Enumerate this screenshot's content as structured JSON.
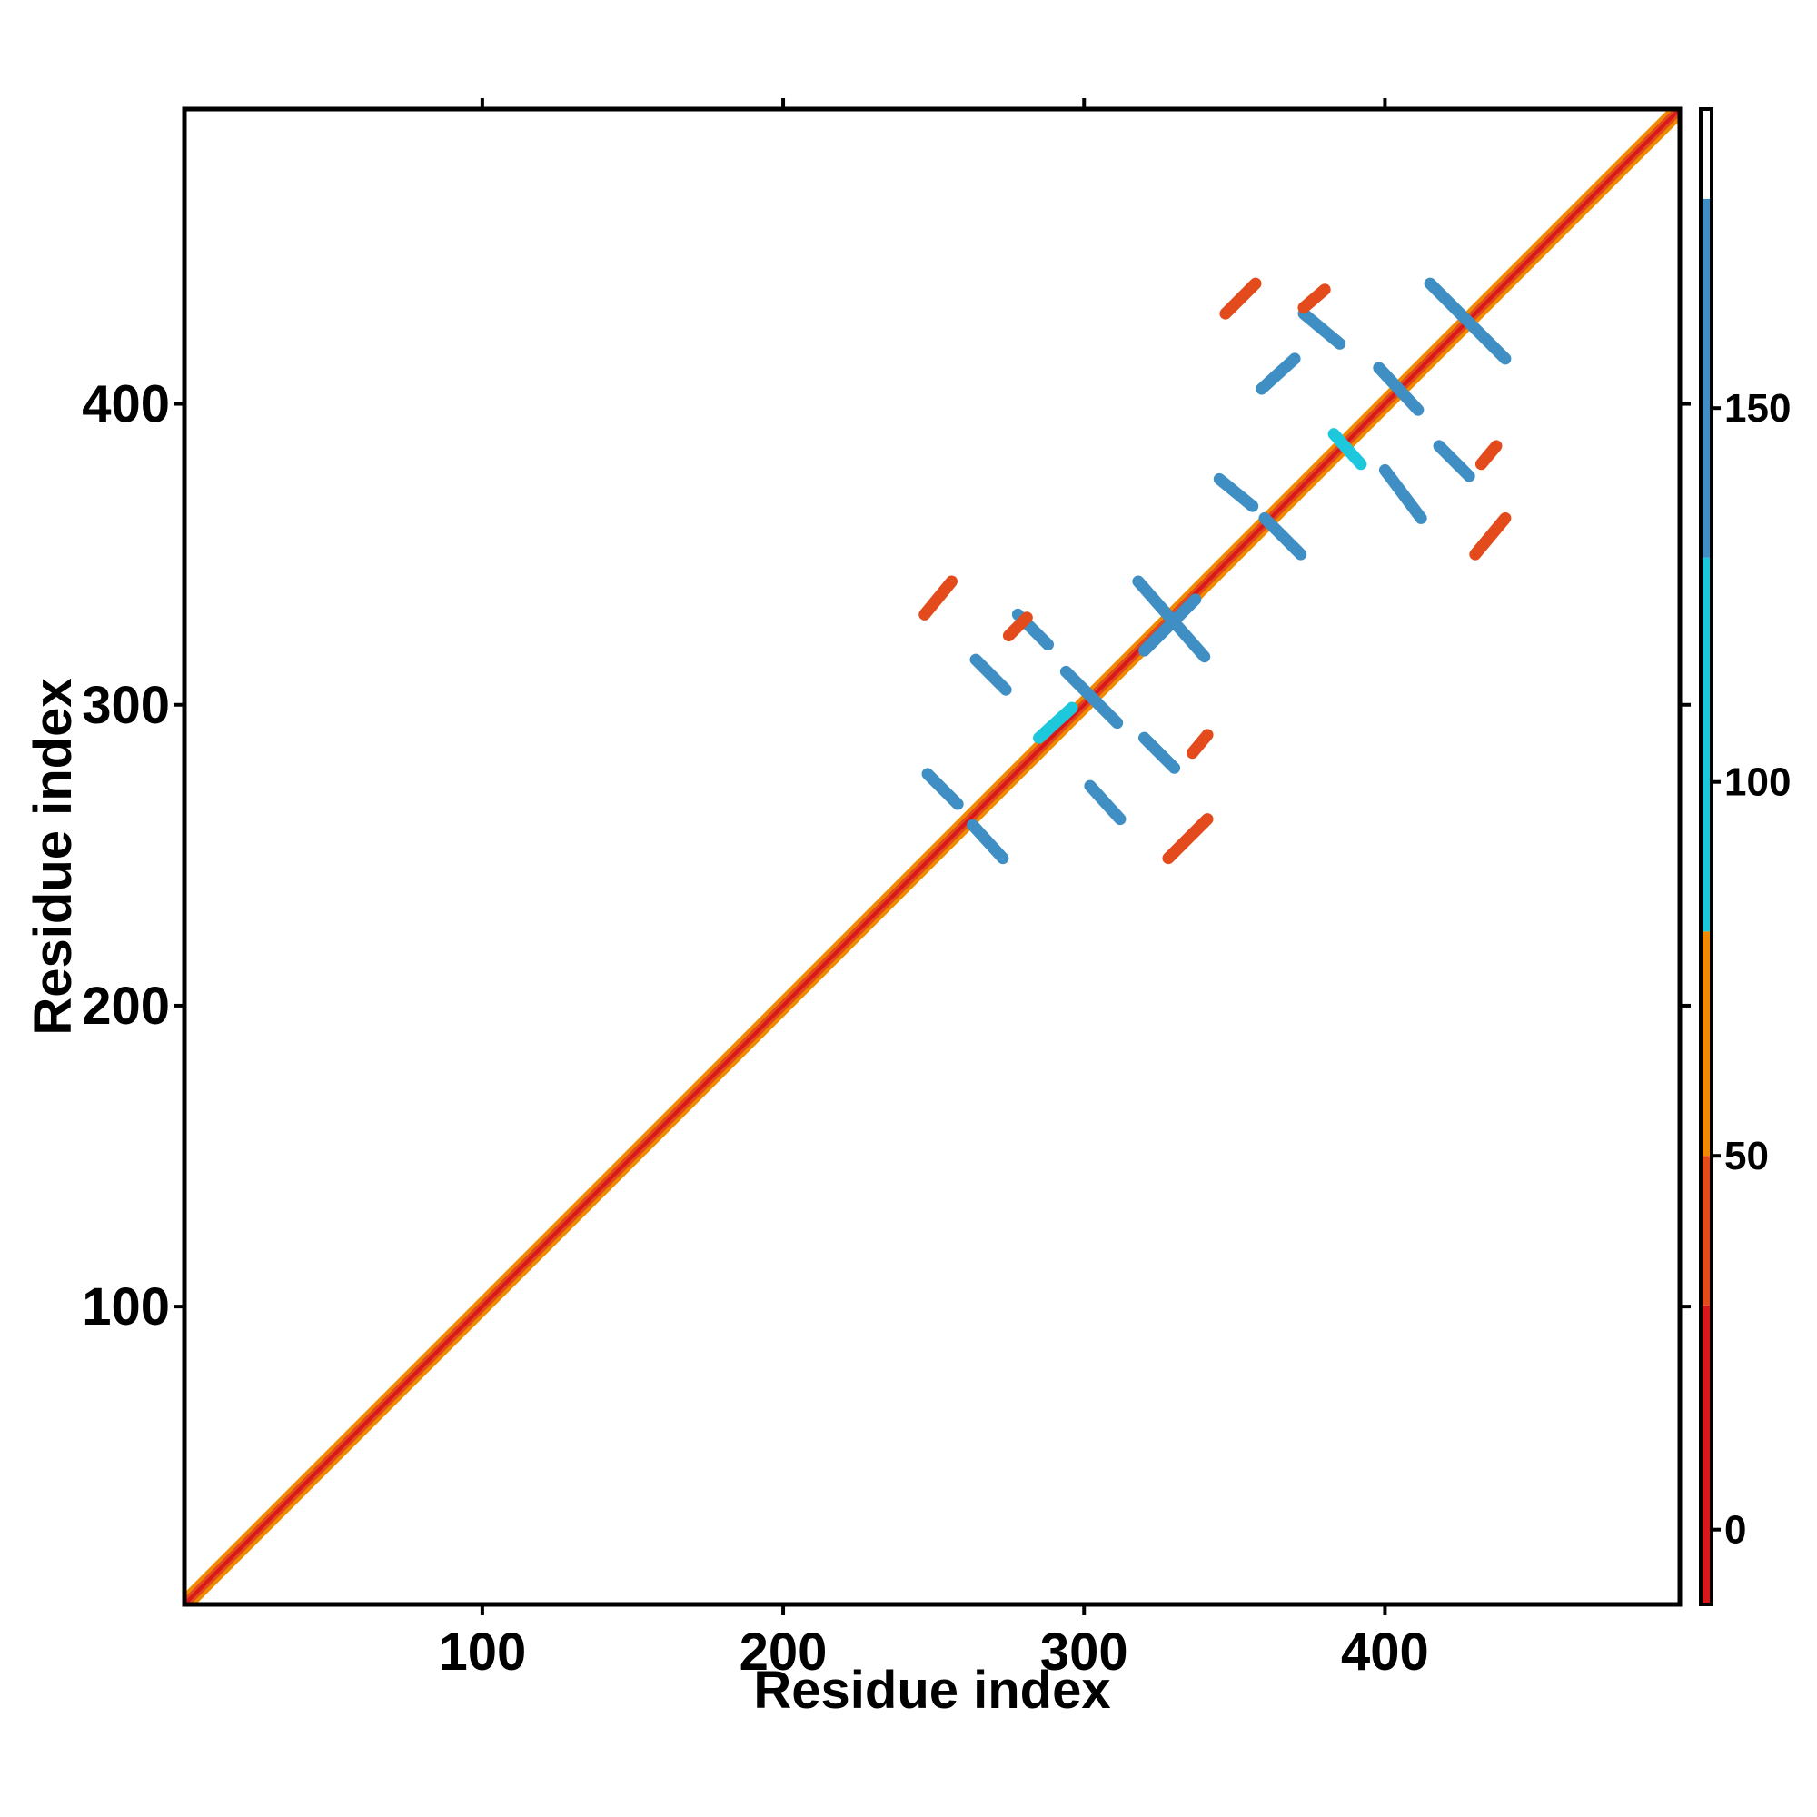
{
  "chart_data": {
    "type": "heatmap",
    "title": "",
    "xlabel": "Residue index",
    "ylabel": "Residue index",
    "xlim": [
      1,
      498
    ],
    "ylim": [
      1,
      498
    ],
    "x_ticks": [
      100,
      200,
      300,
      400
    ],
    "y_ticks": [
      100,
      200,
      300,
      400
    ],
    "x_tick_labels": [
      "100",
      "200",
      "300",
      "400"
    ],
    "y_tick_labels": [
      "100",
      "200",
      "300",
      "400"
    ],
    "grid": false,
    "diagonal_band": {
      "from": 1,
      "to": 498
    },
    "colorbar": {
      "range": [
        -10,
        190
      ],
      "ticks": [
        0,
        50,
        100,
        150
      ],
      "tick_labels": [
        "0",
        "50",
        "100",
        "150"
      ],
      "stops": [
        {
          "from": -10,
          "to": 30,
          "color": "#d7191c"
        },
        {
          "from": 30,
          "to": 50,
          "color": "#e34a1c"
        },
        {
          "from": 50,
          "to": 80,
          "color": "#f08a00"
        },
        {
          "from": 80,
          "to": 130,
          "color": "#1ec8dc"
        },
        {
          "from": 130,
          "to": 178,
          "color": "#3f8fc4"
        },
        {
          "from": 178,
          "to": 190,
          "color": "#ffffff"
        }
      ]
    },
    "contacts": [
      {
        "x1": 318,
        "y1": 341,
        "x2": 340,
        "y2": 316,
        "value": 160
      },
      {
        "x1": 320,
        "y1": 318,
        "x2": 337,
        "y2": 335,
        "value": 160
      },
      {
        "x1": 294,
        "y1": 311,
        "x2": 311,
        "y2": 294,
        "value": 160
      },
      {
        "x1": 285,
        "y1": 289,
        "x2": 296,
        "y2": 299,
        "value": 105
      },
      {
        "x1": 264,
        "y1": 315,
        "x2": 274,
        "y2": 305,
        "value": 160
      },
      {
        "x1": 278,
        "y1": 330,
        "x2": 288,
        "y2": 320,
        "value": 160
      },
      {
        "x1": 248,
        "y1": 277,
        "x2": 258,
        "y2": 267,
        "value": 160
      },
      {
        "x1": 263,
        "y1": 260,
        "x2": 273,
        "y2": 249,
        "value": 160
      },
      {
        "x1": 302,
        "y1": 273,
        "x2": 312,
        "y2": 262,
        "value": 160
      },
      {
        "x1": 320,
        "y1": 289,
        "x2": 330,
        "y2": 279,
        "value": 160
      },
      {
        "x1": 247,
        "y1": 330,
        "x2": 256,
        "y2": 341,
        "value": 40
      },
      {
        "x1": 328,
        "y1": 249,
        "x2": 341,
        "y2": 262,
        "value": 40
      },
      {
        "x1": 275,
        "y1": 323,
        "x2": 281,
        "y2": 329,
        "value": 45
      },
      {
        "x1": 336,
        "y1": 284,
        "x2": 341,
        "y2": 290,
        "value": 45
      },
      {
        "x1": 415,
        "y1": 440,
        "x2": 440,
        "y2": 415,
        "value": 160
      },
      {
        "x1": 398,
        "y1": 412,
        "x2": 411,
        "y2": 398,
        "value": 160
      },
      {
        "x1": 383,
        "y1": 390,
        "x2": 392,
        "y2": 380,
        "value": 105
      },
      {
        "x1": 359,
        "y1": 405,
        "x2": 370,
        "y2": 415,
        "value": 160
      },
      {
        "x1": 373,
        "y1": 430,
        "x2": 385,
        "y2": 420,
        "value": 160
      },
      {
        "x1": 345,
        "y1": 375,
        "x2": 356,
        "y2": 366,
        "value": 160
      },
      {
        "x1": 360,
        "y1": 362,
        "x2": 372,
        "y2": 350,
        "value": 160
      },
      {
        "x1": 400,
        "y1": 378,
        "x2": 412,
        "y2": 362,
        "value": 160
      },
      {
        "x1": 418,
        "y1": 386,
        "x2": 428,
        "y2": 376,
        "value": 160
      },
      {
        "x1": 347,
        "y1": 430,
        "x2": 357,
        "y2": 440,
        "value": 40
      },
      {
        "x1": 430,
        "y1": 350,
        "x2": 440,
        "y2": 362,
        "value": 40
      },
      {
        "x1": 373,
        "y1": 432,
        "x2": 380,
        "y2": 438,
        "value": 45
      },
      {
        "x1": 432,
        "y1": 380,
        "x2": 437,
        "y2": 386,
        "value": 45
      }
    ]
  }
}
